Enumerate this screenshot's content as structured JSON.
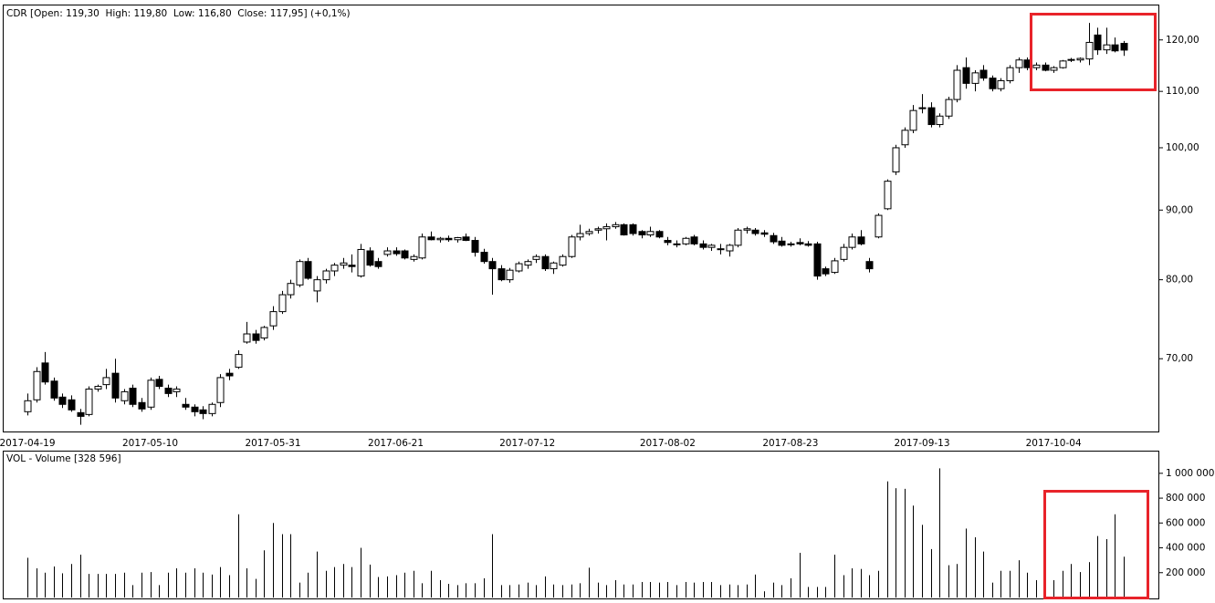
{
  "chart_data": [
    {
      "type": "candlestick",
      "title": "CDR [Open: 119,30  High: 119,80  Low: 116,80  Close: 117,95] (+0,1%)",
      "categories": [
        "2017-04-19",
        null,
        null,
        null,
        null,
        null,
        null,
        null,
        null,
        null,
        null,
        null,
        null,
        null,
        "2017-05-10",
        null,
        null,
        null,
        null,
        null,
        null,
        null,
        null,
        null,
        null,
        null,
        null,
        null,
        "2017-05-31",
        null,
        null,
        null,
        null,
        null,
        null,
        null,
        null,
        null,
        null,
        null,
        null,
        null,
        "2017-06-21",
        null,
        null,
        null,
        null,
        null,
        null,
        null,
        null,
        null,
        null,
        null,
        null,
        null,
        null,
        "2017-07-12",
        null,
        null,
        null,
        null,
        null,
        null,
        null,
        null,
        null,
        null,
        null,
        null,
        null,
        null,
        null,
        "2017-08-02",
        null,
        null,
        null,
        null,
        null,
        null,
        null,
        null,
        null,
        null,
        null,
        null,
        null,
        "2017-08-23",
        null,
        null,
        null,
        null,
        null,
        null,
        null,
        null,
        null,
        null,
        null,
        null,
        null,
        null,
        "2017-09-13",
        null,
        null,
        null,
        null,
        null,
        null,
        null,
        null,
        null,
        null,
        null,
        null,
        null,
        null,
        "2017-10-04",
        null,
        null,
        null,
        null,
        null,
        null,
        null,
        null
      ],
      "open": [
        64.0,
        65.3,
        69.5,
        67.4,
        65.6,
        65.3,
        63.9,
        63.7,
        66.5,
        67.0,
        68.3,
        65.2,
        66.6,
        65.0,
        64.5,
        67.6,
        66.6,
        66.2,
        64.8,
        64.5,
        64.2,
        63.8,
        65.0,
        68.3,
        69.0,
        72.0,
        73.0,
        72.5,
        74.0,
        75.8,
        78.0,
        79.3,
        82.5,
        78.5,
        80.0,
        81.2,
        82.0,
        82.0,
        80.5,
        84.0,
        82.5,
        83.5,
        84.0,
        84.0,
        82.8,
        83.0,
        86.0,
        85.6,
        85.8,
        85.6,
        86.0,
        85.5,
        83.8,
        82.5,
        81.5,
        80.0,
        81.2,
        82.0,
        82.8,
        83.2,
        81.5,
        82.0,
        83.2,
        86.0,
        86.5,
        87.0,
        87.2,
        87.5,
        87.8,
        87.8,
        86.8,
        86.3,
        86.8,
        85.5,
        85.0,
        85.0,
        86.0,
        85.0,
        84.5,
        84.2,
        84.0,
        84.8,
        87.0,
        87.0,
        86.6,
        86.2,
        85.4,
        85.0,
        85.2,
        85.0,
        85.0,
        81.5,
        81.0,
        82.8,
        84.5,
        86.0,
        82.5,
        86.0,
        90.2,
        96.0,
        100.5,
        103.0,
        107.0,
        107.0,
        104.0,
        105.5,
        108.5,
        114.5,
        111.5,
        114.0,
        112.5,
        110.5,
        112.0,
        114.5,
        116.0,
        114.5,
        115.0,
        114.0,
        114.5,
        116.0,
        116.0,
        116.2,
        121.0,
        118.0,
        119.0,
        119.3
      ],
      "high": [
        66.0,
        69.0,
        70.8,
        67.8,
        66.0,
        65.8,
        64.3,
        66.8,
        67.0,
        68.8,
        70.0,
        66.5,
        67.0,
        65.5,
        67.8,
        68.0,
        67.0,
        66.8,
        65.5,
        64.8,
        64.6,
        65.0,
        68.2,
        68.8,
        71.0,
        74.5,
        73.5,
        74.0,
        76.5,
        78.5,
        80.0,
        82.8,
        83.0,
        80.5,
        81.5,
        82.3,
        83.0,
        83.5,
        85.0,
        84.5,
        83.0,
        84.5,
        84.5,
        84.2,
        83.5,
        86.5,
        86.8,
        86.0,
        86.2,
        86.0,
        86.5,
        86.0,
        84.3,
        83.0,
        82.0,
        81.6,
        82.5,
        82.8,
        83.5,
        83.5,
        82.5,
        83.5,
        86.3,
        87.8,
        87.2,
        87.5,
        88.0,
        88.2,
        88.0,
        88.0,
        87.0,
        87.5,
        87.0,
        86.0,
        85.5,
        86.0,
        86.3,
        85.5,
        85.0,
        85.0,
        85.0,
        87.3,
        87.5,
        87.3,
        87.0,
        86.6,
        86.0,
        85.3,
        85.8,
        85.4,
        85.3,
        81.8,
        83.0,
        85.0,
        86.5,
        87.0,
        83.0,
        89.5,
        94.8,
        100.5,
        103.5,
        107.5,
        109.5,
        108.0,
        106.0,
        109.0,
        115.0,
        116.5,
        114.0,
        115.0,
        113.0,
        112.5,
        115.0,
        116.5,
        116.5,
        115.5,
        115.5,
        114.8,
        116.0,
        116.4,
        116.5,
        123.5,
        122.5,
        122.5,
        120.5,
        119.8
      ],
      "low": [
        63.6,
        65.0,
        67.0,
        65.2,
        64.4,
        64.0,
        62.6,
        63.5,
        66.2,
        66.5,
        65.0,
        64.8,
        64.5,
        64.0,
        64.2,
        66.5,
        65.6,
        65.6,
        64.2,
        63.5,
        63.2,
        63.5,
        64.5,
        67.5,
        68.8,
        71.8,
        71.8,
        72.2,
        73.5,
        75.5,
        77.5,
        79.0,
        80.0,
        77.0,
        79.5,
        80.5,
        81.5,
        81.0,
        80.3,
        81.8,
        81.5,
        83.2,
        83.3,
        82.8,
        82.5,
        82.8,
        85.5,
        85.2,
        85.3,
        85.2,
        85.4,
        83.2,
        82.2,
        78.0,
        79.8,
        79.6,
        81.0,
        81.5,
        82.3,
        81.2,
        80.8,
        81.8,
        83.0,
        85.5,
        86.2,
        86.5,
        85.5,
        87.2,
        86.2,
        86.2,
        85.8,
        86.0,
        85.8,
        84.8,
        84.5,
        84.8,
        84.8,
        84.2,
        84.0,
        83.5,
        83.2,
        84.5,
        86.5,
        86.2,
        86.0,
        85.0,
        84.6,
        84.6,
        84.8,
        84.6,
        80.0,
        80.5,
        80.8,
        82.5,
        84.2,
        84.8,
        81.0,
        85.8,
        90.0,
        95.5,
        100.0,
        102.5,
        106.0,
        103.5,
        103.5,
        105.0,
        108.0,
        110.5,
        110.0,
        112.0,
        110.0,
        110.0,
        111.5,
        113.5,
        114.0,
        114.0,
        113.8,
        113.5,
        114.3,
        115.6,
        115.5,
        115.0,
        117.0,
        117.2,
        117.5,
        116.8
      ],
      "close": [
        65.2,
        68.5,
        67.3,
        65.5,
        64.8,
        64.2,
        63.5,
        66.5,
        66.8,
        67.8,
        65.5,
        66.2,
        64.8,
        64.3,
        67.5,
        66.8,
        66.0,
        66.5,
        64.5,
        64.0,
        63.8,
        64.8,
        67.8,
        68.0,
        70.5,
        73.0,
        72.2,
        73.8,
        75.8,
        78.0,
        79.5,
        82.5,
        80.2,
        80.0,
        81.2,
        82.0,
        82.3,
        81.8,
        84.2,
        82.0,
        81.8,
        84.0,
        83.6,
        83.0,
        83.2,
        86.0,
        85.6,
        85.8,
        85.6,
        85.9,
        85.5,
        83.8,
        82.5,
        81.5,
        80.0,
        81.3,
        82.2,
        82.5,
        83.2,
        81.5,
        82.3,
        83.2,
        86.0,
        86.5,
        86.8,
        87.2,
        87.5,
        87.8,
        86.3,
        86.5,
        86.3,
        86.8,
        86.0,
        85.2,
        85.0,
        85.8,
        85.0,
        84.5,
        84.8,
        84.3,
        84.8,
        87.0,
        87.2,
        86.5,
        86.4,
        85.3,
        84.8,
        85.0,
        85.0,
        84.8,
        80.5,
        80.8,
        82.6,
        84.5,
        86.0,
        85.0,
        81.5,
        89.2,
        94.5,
        100.0,
        103.0,
        106.5,
        107.0,
        104.0,
        105.5,
        108.5,
        114.0,
        111.5,
        113.5,
        112.5,
        110.5,
        112.0,
        114.5,
        116.0,
        114.5,
        115.0,
        114.0,
        114.5,
        115.8,
        116.1,
        116.3,
        119.5,
        118.0,
        119.0,
        117.8,
        117.95
      ],
      "up_color": "#ffffff",
      "down_color": "#000000",
      "log_scale": true,
      "ylim": [
        61.8,
        127
      ],
      "yticks": [
        {
          "value": 70,
          "label": "70,00"
        },
        {
          "value": 80,
          "label": "80,00"
        },
        {
          "value": 90,
          "label": "90,00"
        },
        {
          "value": 100,
          "label": "100,00"
        },
        {
          "value": 110,
          "label": "110,00"
        },
        {
          "value": 120,
          "label": "120,00"
        }
      ]
    },
    {
      "type": "bar",
      "title": "VOL - Volume [328 596]",
      "values": [
        320000,
        235000,
        200000,
        250000,
        195000,
        270000,
        345000,
        190000,
        190000,
        190000,
        190000,
        200000,
        100000,
        200000,
        205000,
        100000,
        200000,
        235000,
        200000,
        235000,
        200000,
        185000,
        245000,
        180000,
        670000,
        235000,
        150000,
        380000,
        600000,
        510000,
        510000,
        120000,
        200000,
        370000,
        215000,
        245000,
        270000,
        245000,
        400000,
        265000,
        165000,
        170000,
        180000,
        200000,
        215000,
        115000,
        215000,
        140000,
        110000,
        100000,
        115000,
        115000,
        155000,
        510000,
        100000,
        100000,
        105000,
        120000,
        100000,
        170000,
        105000,
        100000,
        105000,
        115000,
        240000,
        120000,
        100000,
        140000,
        105000,
        105000,
        125000,
        125000,
        120000,
        125000,
        100000,
        125000,
        120000,
        125000,
        125000,
        100000,
        105000,
        100000,
        105000,
        185000,
        50000,
        120000,
        100000,
        155000,
        360000,
        85000,
        85000,
        85000,
        345000,
        180000,
        235000,
        230000,
        180000,
        215000,
        935000,
        880000,
        875000,
        740000,
        585000,
        390000,
        1040000,
        260000,
        270000,
        555000,
        485000,
        370000,
        120000,
        215000,
        215000,
        300000,
        200000,
        140000,
        135000,
        140000,
        215000,
        270000,
        205000,
        285000,
        495000,
        470000,
        670000,
        328596
      ],
      "color": "#000000",
      "ylim": [
        0,
        1175000
      ],
      "yticks": [
        {
          "value": 200000,
          "label": "200 000"
        },
        {
          "value": 400000,
          "label": "400 000"
        },
        {
          "value": 600000,
          "label": "600 000"
        },
        {
          "value": 800000,
          "label": "800 000"
        },
        {
          "value": 1000000,
          "label": "1 000 000"
        }
      ]
    }
  ]
}
